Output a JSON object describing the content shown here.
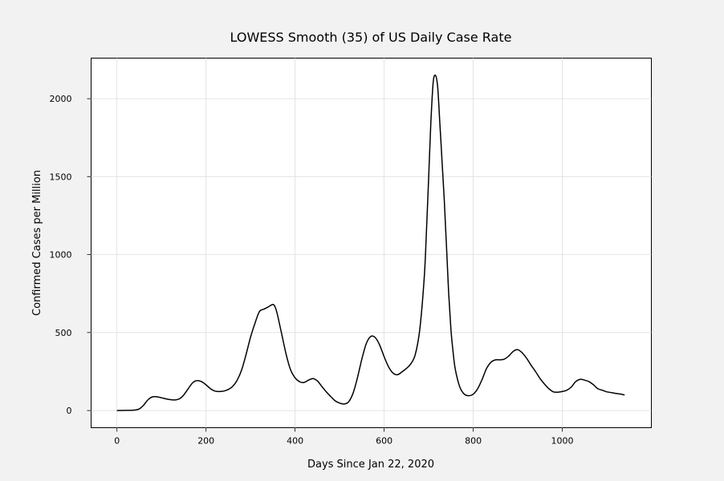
{
  "chart_data": {
    "type": "line",
    "title": "LOWESS Smooth (35) of US Daily Case Rate",
    "xlabel": "Days Since Jan 22, 2020",
    "ylabel": "Confirmed Cases per Million",
    "xlim": [
      -58,
      1200
    ],
    "ylim": [
      -110,
      2260
    ],
    "xticks": [
      0,
      200,
      400,
      600,
      800,
      1000
    ],
    "yticks": [
      0,
      500,
      1000,
      1500,
      2000
    ],
    "grid": true,
    "line_color": "#000000",
    "background": "#f2f2f2",
    "series": [
      {
        "x": [
          0,
          20,
          40,
          50,
          60,
          70,
          80,
          90,
          100,
          110,
          120,
          130,
          140,
          150,
          160,
          170,
          180,
          190,
          200,
          210,
          220,
          230,
          240,
          250,
          260,
          270,
          280,
          290,
          300,
          310,
          320,
          330,
          340,
          350,
          355,
          360,
          370,
          380,
          390,
          400,
          410,
          420,
          430,
          440,
          450,
          460,
          470,
          480,
          490,
          500,
          510,
          520,
          530,
          540,
          550,
          560,
          570,
          580,
          590,
          600,
          610,
          620,
          630,
          640,
          650,
          660,
          670,
          680,
          690,
          695,
          700,
          705,
          710,
          715,
          720,
          725,
          730,
          735,
          740,
          745,
          750,
          755,
          760,
          770,
          780,
          790,
          800,
          810,
          820,
          830,
          840,
          850,
          860,
          870,
          880,
          890,
          900,
          910,
          920,
          930,
          940,
          950,
          960,
          970,
          980,
          990,
          1000,
          1010,
          1020,
          1030,
          1040,
          1050,
          1060,
          1070,
          1080,
          1090,
          1100,
          1110,
          1120,
          1130,
          1140
        ],
        "y": [
          0,
          1,
          3,
          10,
          35,
          70,
          88,
          88,
          82,
          75,
          70,
          68,
          75,
          100,
          140,
          178,
          192,
          185,
          165,
          140,
          125,
          122,
          125,
          135,
          155,
          195,
          260,
          360,
          470,
          560,
          635,
          650,
          665,
          680,
          665,
          620,
          490,
          360,
          260,
          210,
          185,
          180,
          195,
          205,
          190,
          155,
          120,
          90,
          62,
          48,
          42,
          55,
          110,
          210,
          330,
          430,
          475,
          468,
          420,
          345,
          280,
          240,
          230,
          248,
          270,
          300,
          360,
          520,
          850,
          1150,
          1500,
          1850,
          2100,
          2150,
          2080,
          1850,
          1600,
          1350,
          1050,
          750,
          520,
          370,
          260,
          150,
          105,
          95,
          105,
          140,
          200,
          270,
          310,
          325,
          325,
          330,
          350,
          380,
          390,
          370,
          335,
          290,
          250,
          205,
          170,
          140,
          120,
          118,
          122,
          130,
          150,
          185,
          200,
          195,
          185,
          165,
          140,
          130,
          120,
          115,
          110,
          106,
          100
        ]
      }
    ]
  }
}
